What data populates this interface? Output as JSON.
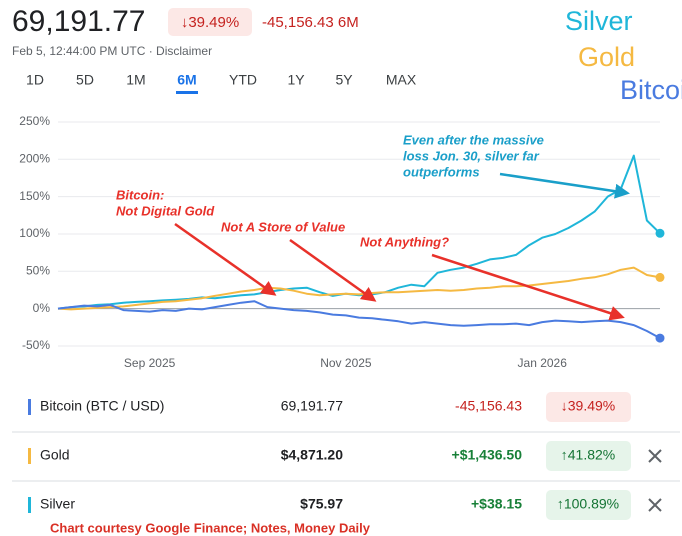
{
  "header": {
    "price": "69,191.77",
    "change_chip": "↓39.49%",
    "change": "-45,156.43 6M",
    "timestamp": "Feb 5, 12:44:00 PM UTC · Disclaimer"
  },
  "tabs": {
    "items": [
      "1D",
      "5D",
      "1M",
      "6M",
      "YTD",
      "1Y",
      "5Y",
      "MAX"
    ],
    "selected": 3
  },
  "chart_data": {
    "type": "line",
    "categories": [
      null,
      null,
      null,
      null,
      null,
      null,
      null,
      "Sep 2025",
      null,
      null,
      null,
      null,
      null,
      null,
      null,
      null,
      null,
      null,
      null,
      null,
      null,
      null,
      "Nov 2025",
      null,
      null,
      null,
      null,
      null,
      null,
      null,
      null,
      null,
      null,
      null,
      null,
      null,
      null,
      "Jan 2026",
      null,
      null,
      null,
      null,
      null,
      null,
      null,
      null,
      null
    ],
    "series": [
      {
        "name": "Silver",
        "color": "#1fb6d9",
        "values": [
          0,
          2,
          3,
          5,
          6,
          8,
          9,
          10,
          11,
          12,
          13,
          15,
          14,
          16,
          18,
          19,
          22,
          25,
          27,
          28,
          22,
          17,
          20,
          18,
          19,
          22,
          28,
          32,
          30,
          48,
          52,
          55,
          60,
          66,
          68,
          72,
          85,
          95,
          100,
          108,
          118,
          130,
          150,
          160,
          205,
          118,
          100.89
        ]
      },
      {
        "name": "Gold",
        "color": "#f5b942",
        "values": [
          0,
          -1,
          0,
          1,
          2,
          3,
          5,
          7,
          9,
          10,
          12,
          14,
          17,
          20,
          23,
          25,
          28,
          27,
          24,
          20,
          18,
          19,
          20,
          19,
          21,
          22,
          22,
          23,
          24,
          25,
          24,
          25,
          27,
          28,
          30,
          30,
          31,
          33,
          35,
          37,
          40,
          42,
          46,
          52,
          55,
          45,
          41.82
        ]
      },
      {
        "name": "Bitcoin",
        "color": "#4a7be0",
        "values": [
          0,
          2,
          4,
          3,
          5,
          -2,
          -3,
          -4,
          -2,
          -3,
          0,
          -1,
          2,
          5,
          8,
          10,
          2,
          0,
          -2,
          -3,
          -5,
          -8,
          -9,
          -12,
          -13,
          -15,
          -17,
          -20,
          -18,
          -20,
          -22,
          -23,
          -22,
          -21,
          -21,
          -20,
          -22,
          -18,
          -16,
          -17,
          -18,
          -17,
          -16,
          -18,
          -22,
          -30,
          -39.49
        ]
      }
    ],
    "ylim": [
      -55,
      260
    ],
    "yticks": [
      {
        "value": 250,
        "label": "250%"
      },
      {
        "value": 200,
        "label": "200%"
      },
      {
        "value": 150,
        "label": "150%"
      },
      {
        "value": 100,
        "label": "100%"
      },
      {
        "value": 50,
        "label": "50%"
      },
      {
        "value": 0,
        "label": "0%"
      },
      {
        "value": -50,
        "label": "-50%"
      }
    ],
    "grid": true,
    "annotations": [
      {
        "lines": [
          "Even after the massive",
          "loss Jon. 30, silver far",
          "outperforms"
        ],
        "color": "#1a9fc9"
      },
      {
        "lines": [
          "Bitcoin:",
          "Not Digital Gold"
        ],
        "color": "#e8312a"
      },
      {
        "lines": [
          "Not A Store of Value"
        ],
        "color": "#e8312a"
      },
      {
        "lines": [
          "Not Anything?"
        ],
        "color": "#e8312a"
      }
    ]
  },
  "table": {
    "rows": [
      {
        "name": "Bitcoin (BTC / USD)",
        "price": "69,191.77",
        "change": "-45,156.43",
        "percent": "↓39.49%"
      },
      {
        "name": "Gold",
        "price": "$4,871.20",
        "change": "+$1,436.50",
        "percent": "↑41.82%"
      },
      {
        "name": "Silver",
        "price": "$75.97",
        "change": "+$38.15",
        "percent": "↑100.89%"
      }
    ]
  },
  "footer": "Chart courtesy Google Finance; Notes, Money Daily"
}
